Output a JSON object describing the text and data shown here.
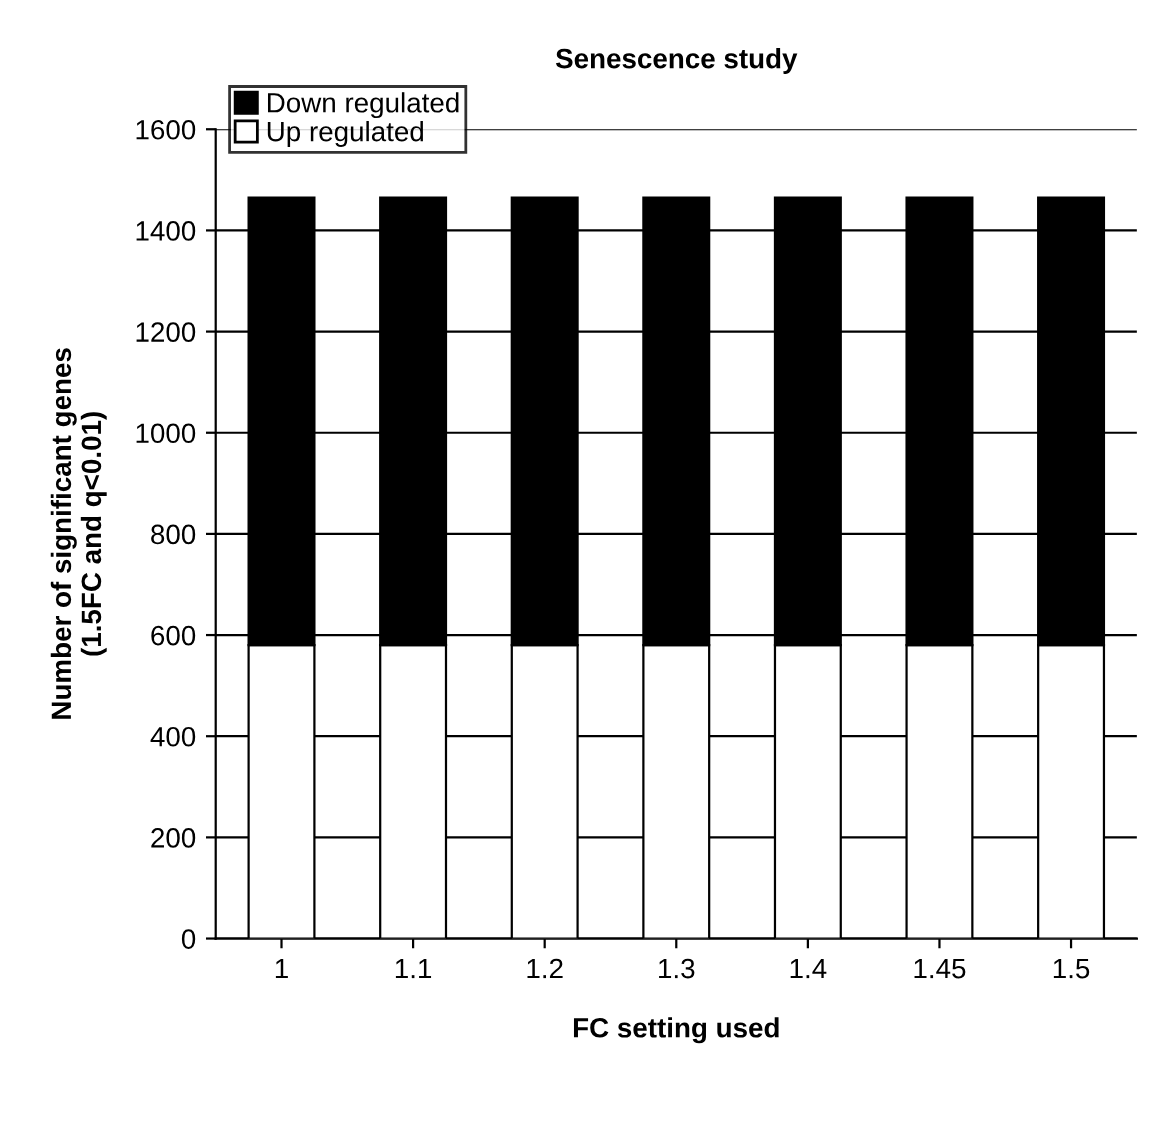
{
  "chart_data": {
    "type": "bar",
    "title": "Senescence study",
    "xlabel": "FC setting used",
    "ylabel": "Number of significant genes\n(1.5FC and q<0.01)",
    "categories": [
      "1",
      "1.1",
      "1.2",
      "1.3",
      "1.4",
      "1.45",
      "1.5"
    ],
    "stacked": true,
    "series": [
      {
        "name": "Up regulated",
        "color": "#ffffff",
        "values": [
          580,
          580,
          580,
          580,
          580,
          580,
          580
        ]
      },
      {
        "name": "Down regulated",
        "color": "#000000",
        "values": [
          885,
          885,
          885,
          885,
          885,
          885,
          885
        ]
      }
    ],
    "ylim": [
      0,
      1600
    ],
    "yticks": [
      0,
      200,
      400,
      600,
      800,
      1000,
      1200,
      1400,
      1600
    ],
    "grid": "y",
    "legend": "top left"
  }
}
